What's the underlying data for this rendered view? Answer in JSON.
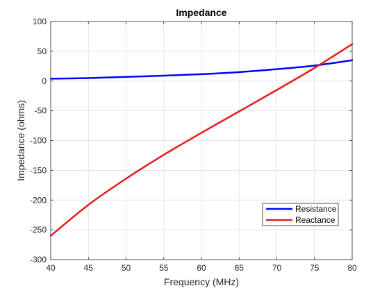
{
  "figure": {
    "title": "Impedance"
  },
  "chart_data": {
    "type": "line",
    "title": "Impedance",
    "xlabel": "Frequency (MHz)",
    "ylabel": "Impedance (ohms)",
    "xlim": [
      40,
      80
    ],
    "ylim": [
      -300,
      100
    ],
    "xticks": [
      40,
      45,
      50,
      55,
      60,
      65,
      70,
      75,
      80
    ],
    "yticks": [
      100,
      50,
      0,
      -50,
      -100,
      -150,
      -200,
      -250,
      -300
    ],
    "grid": true,
    "legend_position": "bottom-right",
    "series": [
      {
        "name": "Resistance",
        "color": "#0000ff",
        "x": [
          40,
          45,
          50,
          55,
          60,
          65,
          70,
          75,
          80
        ],
        "y": [
          4,
          5,
          7,
          9,
          11.5,
          15,
          20,
          26,
          35
        ]
      },
      {
        "name": "Reactance",
        "color": "#e31a1c",
        "x": [
          40,
          45,
          50,
          55,
          60,
          65,
          70,
          75,
          80
        ],
        "y": [
          -260,
          -208,
          -164,
          -124,
          -87,
          -51,
          -15,
          22,
          62
        ]
      }
    ]
  }
}
